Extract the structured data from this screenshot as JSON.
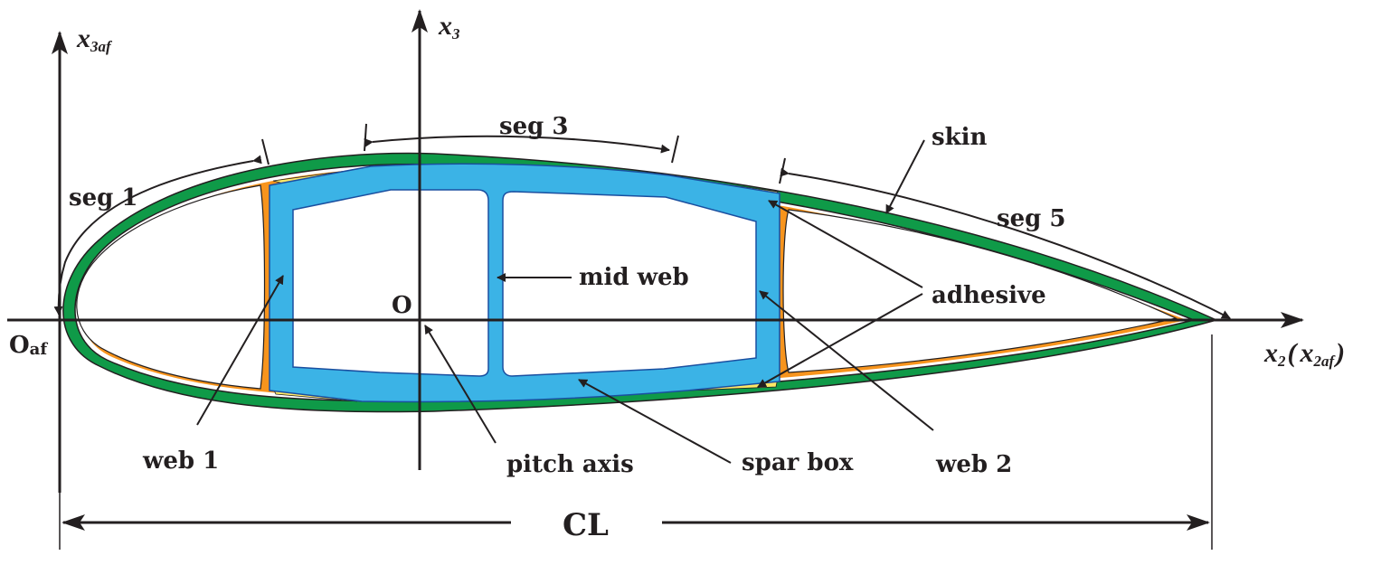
{
  "colors": {
    "skin": "#0f9a48",
    "adhesive": "#f5b94b",
    "web_fill": "#f7941d",
    "spar_box": "#3bb3e6",
    "spar_outline": "#1a4fa0",
    "ink": "#231f20"
  },
  "axes": {
    "x3af": {
      "main": "x",
      "sub": "3af"
    },
    "x3": {
      "main": "x",
      "sub": "3"
    },
    "x2": {
      "main": "x",
      "sub": "2",
      "paren_open": "(",
      "paren_main": "x",
      "paren_sub": "2af",
      "paren_close": ")"
    },
    "origin_af": {
      "main": "O",
      "sub": "af"
    },
    "origin": "O"
  },
  "labels": {
    "seg1": "seg 1",
    "seg3": "seg 3",
    "seg5": "seg 5",
    "skin": "skin",
    "mid_web": "mid web",
    "adhesive": "adhesive",
    "web1": "web 1",
    "pitch_axis": "pitch axis",
    "spar_box": "spar box",
    "web2": "web 2",
    "chord_length": "CL"
  }
}
